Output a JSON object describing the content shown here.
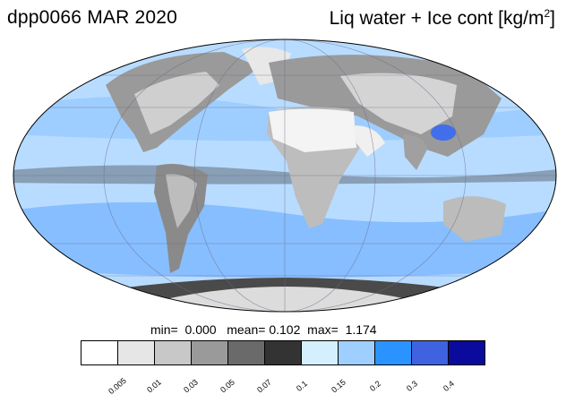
{
  "header": {
    "left_title": "dpp0066 MAR 2020",
    "right_title_main": "Liq water + Ice cont [kg/m",
    "right_title_sup": "2",
    "right_title_end": "]"
  },
  "stats": {
    "min_label": "min=",
    "min_value": "0.000",
    "mean_label": "mean=",
    "mean_value": "0.102",
    "max_label": "max=",
    "max_value": "1.174"
  },
  "colorbar": {
    "colors": [
      "#ffffff",
      "#e6e6e6",
      "#c8c8c8",
      "#9a9a9a",
      "#6a6a6a",
      "#333333",
      "#d4f0ff",
      "#9ecfff",
      "#2a93ff",
      "#3f63e0",
      "#0a0a9c"
    ],
    "tick_labels": [
      "0.005",
      "0.01",
      "0.03",
      "0.05",
      "0.07",
      "0.1",
      "0.15",
      "0.2",
      "0.3",
      "0.4"
    ]
  },
  "map": {
    "projection": "mollweide",
    "ocean_color": "#b8dcff",
    "cloud_color": "#6fb0ff",
    "land_color": "#c9c9c9",
    "desert_color": "#f4f4f4",
    "ice_color": "#4a4a4a"
  }
}
